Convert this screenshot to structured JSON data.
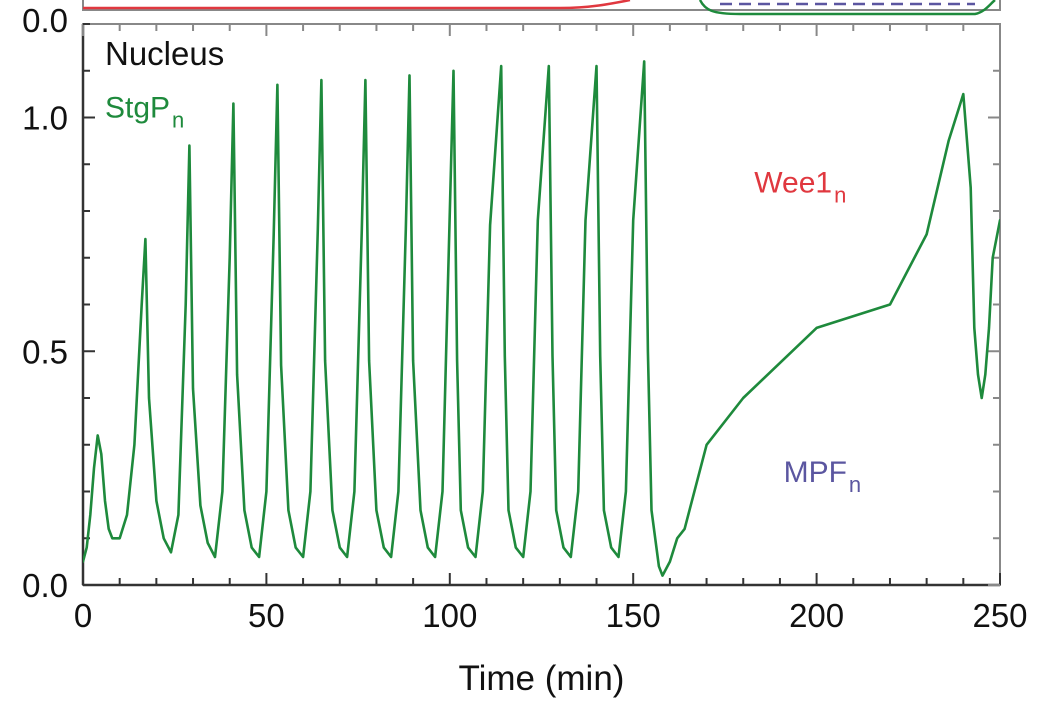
{
  "chart_data": {
    "type": "line",
    "panel_title": "Nucleus",
    "top_panel_tick": "0.0",
    "xlabel": "Time (min)",
    "ylabel": "",
    "xlim": [
      0,
      250
    ],
    "ylim": [
      0,
      1.2
    ],
    "x_ticks": [
      0,
      50,
      100,
      150,
      200,
      250
    ],
    "x_tick_labels": [
      "0",
      "50",
      "100",
      "150",
      "200",
      "250"
    ],
    "y_ticks": [
      0,
      0.5,
      1.0
    ],
    "y_tick_labels": [
      "0.0",
      "0.5",
      "1.0"
    ],
    "grid": false,
    "legend": "inline",
    "colors": {
      "stg": "#1e8a3c",
      "wee": "#e0383f",
      "mpf": "#5b56a0"
    },
    "annotations": [
      {
        "series": "stg",
        "label_main": "StgP",
        "label_sub": "n",
        "x": 6,
        "y": 1.0
      },
      {
        "series": "wee",
        "label_main": "Wee1",
        "label_sub": "n",
        "x": 183,
        "y": 0.84
      },
      {
        "series": "mpf",
        "label_main": "MPF",
        "label_sub": "n",
        "x": 191,
        "y": 0.22
      }
    ],
    "series": [
      {
        "key": "stg",
        "style": "solid",
        "x": [
          0,
          1,
          2,
          3,
          4,
          5,
          6,
          7,
          8,
          10,
          12,
          14,
          16,
          17,
          18,
          20,
          22,
          24,
          26,
          28,
          29,
          30,
          32,
          34,
          36,
          38,
          40,
          41,
          42,
          44,
          46,
          48,
          50,
          52,
          53,
          54,
          56,
          58,
          60,
          62,
          64,
          65,
          66,
          68,
          70,
          72,
          74,
          76,
          77,
          78,
          80,
          82,
          84,
          86,
          88,
          89,
          90,
          92,
          94,
          96,
          98,
          101,
          102,
          103,
          105,
          107,
          109,
          111,
          114,
          115,
          116,
          118,
          120,
          122,
          124,
          127,
          128,
          129,
          131,
          133,
          135,
          137,
          140,
          141,
          142,
          144,
          146,
          148,
          150,
          153,
          154,
          155,
          157,
          158,
          160,
          162,
          164,
          170,
          180,
          200,
          220,
          230,
          236,
          240,
          242,
          243,
          244,
          245,
          246,
          247,
          248,
          250
        ],
        "y": [
          0.05,
          0.08,
          0.15,
          0.25,
          0.32,
          0.28,
          0.18,
          0.12,
          0.1,
          0.1,
          0.15,
          0.3,
          0.6,
          0.74,
          0.4,
          0.18,
          0.1,
          0.07,
          0.15,
          0.6,
          0.94,
          0.42,
          0.17,
          0.09,
          0.06,
          0.2,
          0.7,
          1.03,
          0.45,
          0.16,
          0.08,
          0.06,
          0.2,
          0.75,
          1.07,
          0.47,
          0.16,
          0.08,
          0.06,
          0.2,
          0.76,
          1.08,
          0.48,
          0.16,
          0.08,
          0.06,
          0.2,
          0.76,
          1.08,
          0.48,
          0.16,
          0.08,
          0.06,
          0.2,
          0.76,
          1.09,
          0.48,
          0.16,
          0.08,
          0.06,
          0.2,
          1.1,
          0.48,
          0.16,
          0.08,
          0.06,
          0.2,
          0.77,
          1.11,
          0.49,
          0.16,
          0.08,
          0.06,
          0.2,
          0.78,
          1.11,
          0.49,
          0.16,
          0.08,
          0.06,
          0.2,
          0.78,
          1.11,
          0.49,
          0.16,
          0.08,
          0.06,
          0.2,
          0.78,
          1.12,
          0.5,
          0.16,
          0.04,
          0.02,
          0.05,
          0.1,
          0.12,
          0.3,
          0.4,
          0.55,
          0.6,
          0.75,
          0.95,
          1.05,
          0.85,
          0.55,
          0.45,
          0.4,
          0.45,
          0.55,
          0.7,
          0.78
        ]
      }
    ]
  }
}
